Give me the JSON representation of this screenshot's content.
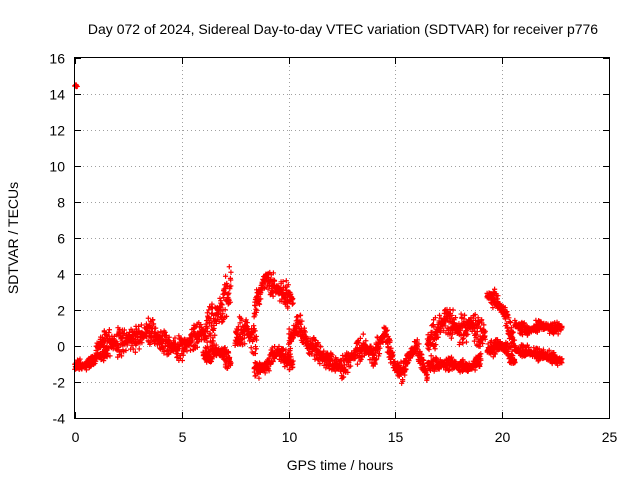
{
  "chart_data": {
    "type": "scatter",
    "title": "Day 072 of 2024, Sidereal Day-to-day VTEC variation (SDTVAR) for receiver p776",
    "xlabel": "GPS time / hours",
    "ylabel": "SDTVAR / TECUs",
    "xlim": [
      0,
      25
    ],
    "ylim": [
      -4,
      16
    ],
    "xticks": [
      0,
      5,
      10,
      15,
      20,
      25
    ],
    "yticks": [
      -4,
      -2,
      0,
      2,
      4,
      6,
      8,
      10,
      12,
      14,
      16
    ],
    "grid": true,
    "marker": "+",
    "series_color": "#ff0000",
    "series": [
      {
        "name": "SDTVAR",
        "segments": [
          {
            "x0": 0.0,
            "x1": 0.1,
            "center": [
              [
                0.0,
                14.5
              ],
              [
                0.1,
                14.4
              ]
            ],
            "spread": 0.15
          },
          {
            "x0": 0.0,
            "x1": 1.5,
            "center": [
              [
                0.0,
                -1.0
              ],
              [
                0.5,
                -1.1
              ],
              [
                1.0,
                -0.6
              ],
              [
                1.5,
                -0.4
              ]
            ],
            "spread": 0.7
          },
          {
            "x0": 1.0,
            "x1": 4.5,
            "center": [
              [
                1.0,
                0.0
              ],
              [
                2.0,
                0.2
              ],
              [
                3.0,
                0.5
              ],
              [
                3.5,
                0.8
              ],
              [
                4.0,
                0.3
              ],
              [
                4.5,
                0.0
              ]
            ],
            "spread": 1.7
          },
          {
            "x0": 4.5,
            "x1": 6.0,
            "center": [
              [
                4.5,
                0.0
              ],
              [
                5.0,
                -0.1
              ],
              [
                5.5,
                0.4
              ],
              [
                6.0,
                0.8
              ]
            ],
            "spread": 1.5
          },
          {
            "x0": 6.0,
            "x1": 7.3,
            "center": [
              [
                6.0,
                0.5
              ],
              [
                6.5,
                1.5
              ],
              [
                7.0,
                2.5
              ],
              [
                7.3,
                3.5
              ]
            ],
            "spread": 2.5
          },
          {
            "x0": 6.0,
            "x1": 7.3,
            "center": [
              [
                6.0,
                -0.5
              ],
              [
                6.5,
                -0.2
              ],
              [
                7.0,
                -0.6
              ],
              [
                7.3,
                -1.0
              ]
            ],
            "spread": 1.2
          },
          {
            "x0": 7.5,
            "x1": 8.5,
            "center": [
              [
                7.5,
                0.5
              ],
              [
                8.0,
                1.0
              ],
              [
                8.5,
                0.2
              ]
            ],
            "spread": 2.0
          },
          {
            "x0": 8.4,
            "x1": 10.2,
            "center": [
              [
                8.4,
                2.0
              ],
              [
                8.9,
                3.8
              ],
              [
                9.4,
                3.2
              ],
              [
                10.0,
                2.8
              ],
              [
                10.2,
                2.5
              ]
            ],
            "spread": 1.6
          },
          {
            "x0": 8.4,
            "x1": 10.2,
            "center": [
              [
                8.4,
                -1.5
              ],
              [
                9.0,
                -1.0
              ],
              [
                9.5,
                -0.3
              ],
              [
                10.2,
                -1.0
              ]
            ],
            "spread": 1.2
          },
          {
            "x0": 10.0,
            "x1": 11.0,
            "center": [
              [
                10.0,
                0.2
              ],
              [
                10.5,
                1.2
              ],
              [
                11.0,
                -0.2
              ]
            ],
            "spread": 1.6
          },
          {
            "x0": 11.0,
            "x1": 13.5,
            "center": [
              [
                11.0,
                0.0
              ],
              [
                11.8,
                -0.8
              ],
              [
                12.5,
                -1.2
              ],
              [
                13.0,
                -0.6
              ],
              [
                13.5,
                0.0
              ]
            ],
            "spread": 1.4
          },
          {
            "x0": 13.5,
            "x1": 15.5,
            "center": [
              [
                13.5,
                0.0
              ],
              [
                14.0,
                -0.5
              ],
              [
                14.5,
                0.8
              ],
              [
                15.0,
                -1.2
              ],
              [
                15.5,
                -1.5
              ]
            ],
            "spread": 1.5
          },
          {
            "x0": 15.5,
            "x1": 16.5,
            "center": [
              [
                15.5,
                -0.8
              ],
              [
                16.0,
                0.0
              ],
              [
                16.5,
                -1.8
              ]
            ],
            "spread": 1.2
          },
          {
            "x0": 16.5,
            "x1": 19.2,
            "center": [
              [
                16.5,
                0.0
              ],
              [
                17.0,
                1.0
              ],
              [
                17.5,
                1.5
              ],
              [
                18.0,
                0.8
              ],
              [
                18.5,
                1.2
              ],
              [
                19.2,
                0.5
              ]
            ],
            "spread": 1.9
          },
          {
            "x0": 16.5,
            "x1": 19.0,
            "center": [
              [
                16.5,
                -1.0
              ],
              [
                17.5,
                -1.0
              ],
              [
                18.5,
                -1.2
              ],
              [
                19.0,
                -0.8
              ]
            ],
            "spread": 0.8
          },
          {
            "x0": 19.3,
            "x1": 20.6,
            "center": [
              [
                19.3,
                2.8
              ],
              [
                19.7,
                2.6
              ],
              [
                20.1,
                1.8
              ],
              [
                20.6,
                0.0
              ]
            ],
            "spread": 1.2
          },
          {
            "x0": 19.3,
            "x1": 20.6,
            "center": [
              [
                19.3,
                -0.2
              ],
              [
                20.0,
                0.0
              ],
              [
                20.6,
                -0.8
              ]
            ],
            "spread": 1.0
          },
          {
            "x0": 20.6,
            "x1": 22.8,
            "center": [
              [
                20.6,
                1.2
              ],
              [
                21.2,
                0.8
              ],
              [
                21.8,
                1.2
              ],
              [
                22.3,
                1.0
              ],
              [
                22.8,
                1.0
              ]
            ],
            "spread": 0.8
          },
          {
            "x0": 20.6,
            "x1": 22.8,
            "center": [
              [
                20.6,
                -0.2
              ],
              [
                21.2,
                -0.3
              ],
              [
                21.8,
                -0.5
              ],
              [
                22.3,
                -0.6
              ],
              [
                22.8,
                -0.8
              ]
            ],
            "spread": 0.8
          }
        ]
      }
    ]
  }
}
